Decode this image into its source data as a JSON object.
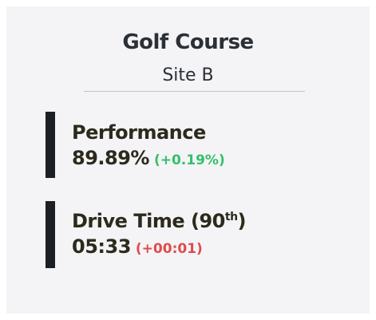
{
  "header": {
    "title": "Golf Course",
    "subtitle": "Site B"
  },
  "metrics": [
    {
      "label": "Performance",
      "value": "89.89%",
      "change": "(+0.19%)"
    },
    {
      "label": "Drive Time (90",
      "label_sup": "th",
      "label_end": ")",
      "value": "05:33",
      "change": "(+00:01)"
    }
  ]
}
